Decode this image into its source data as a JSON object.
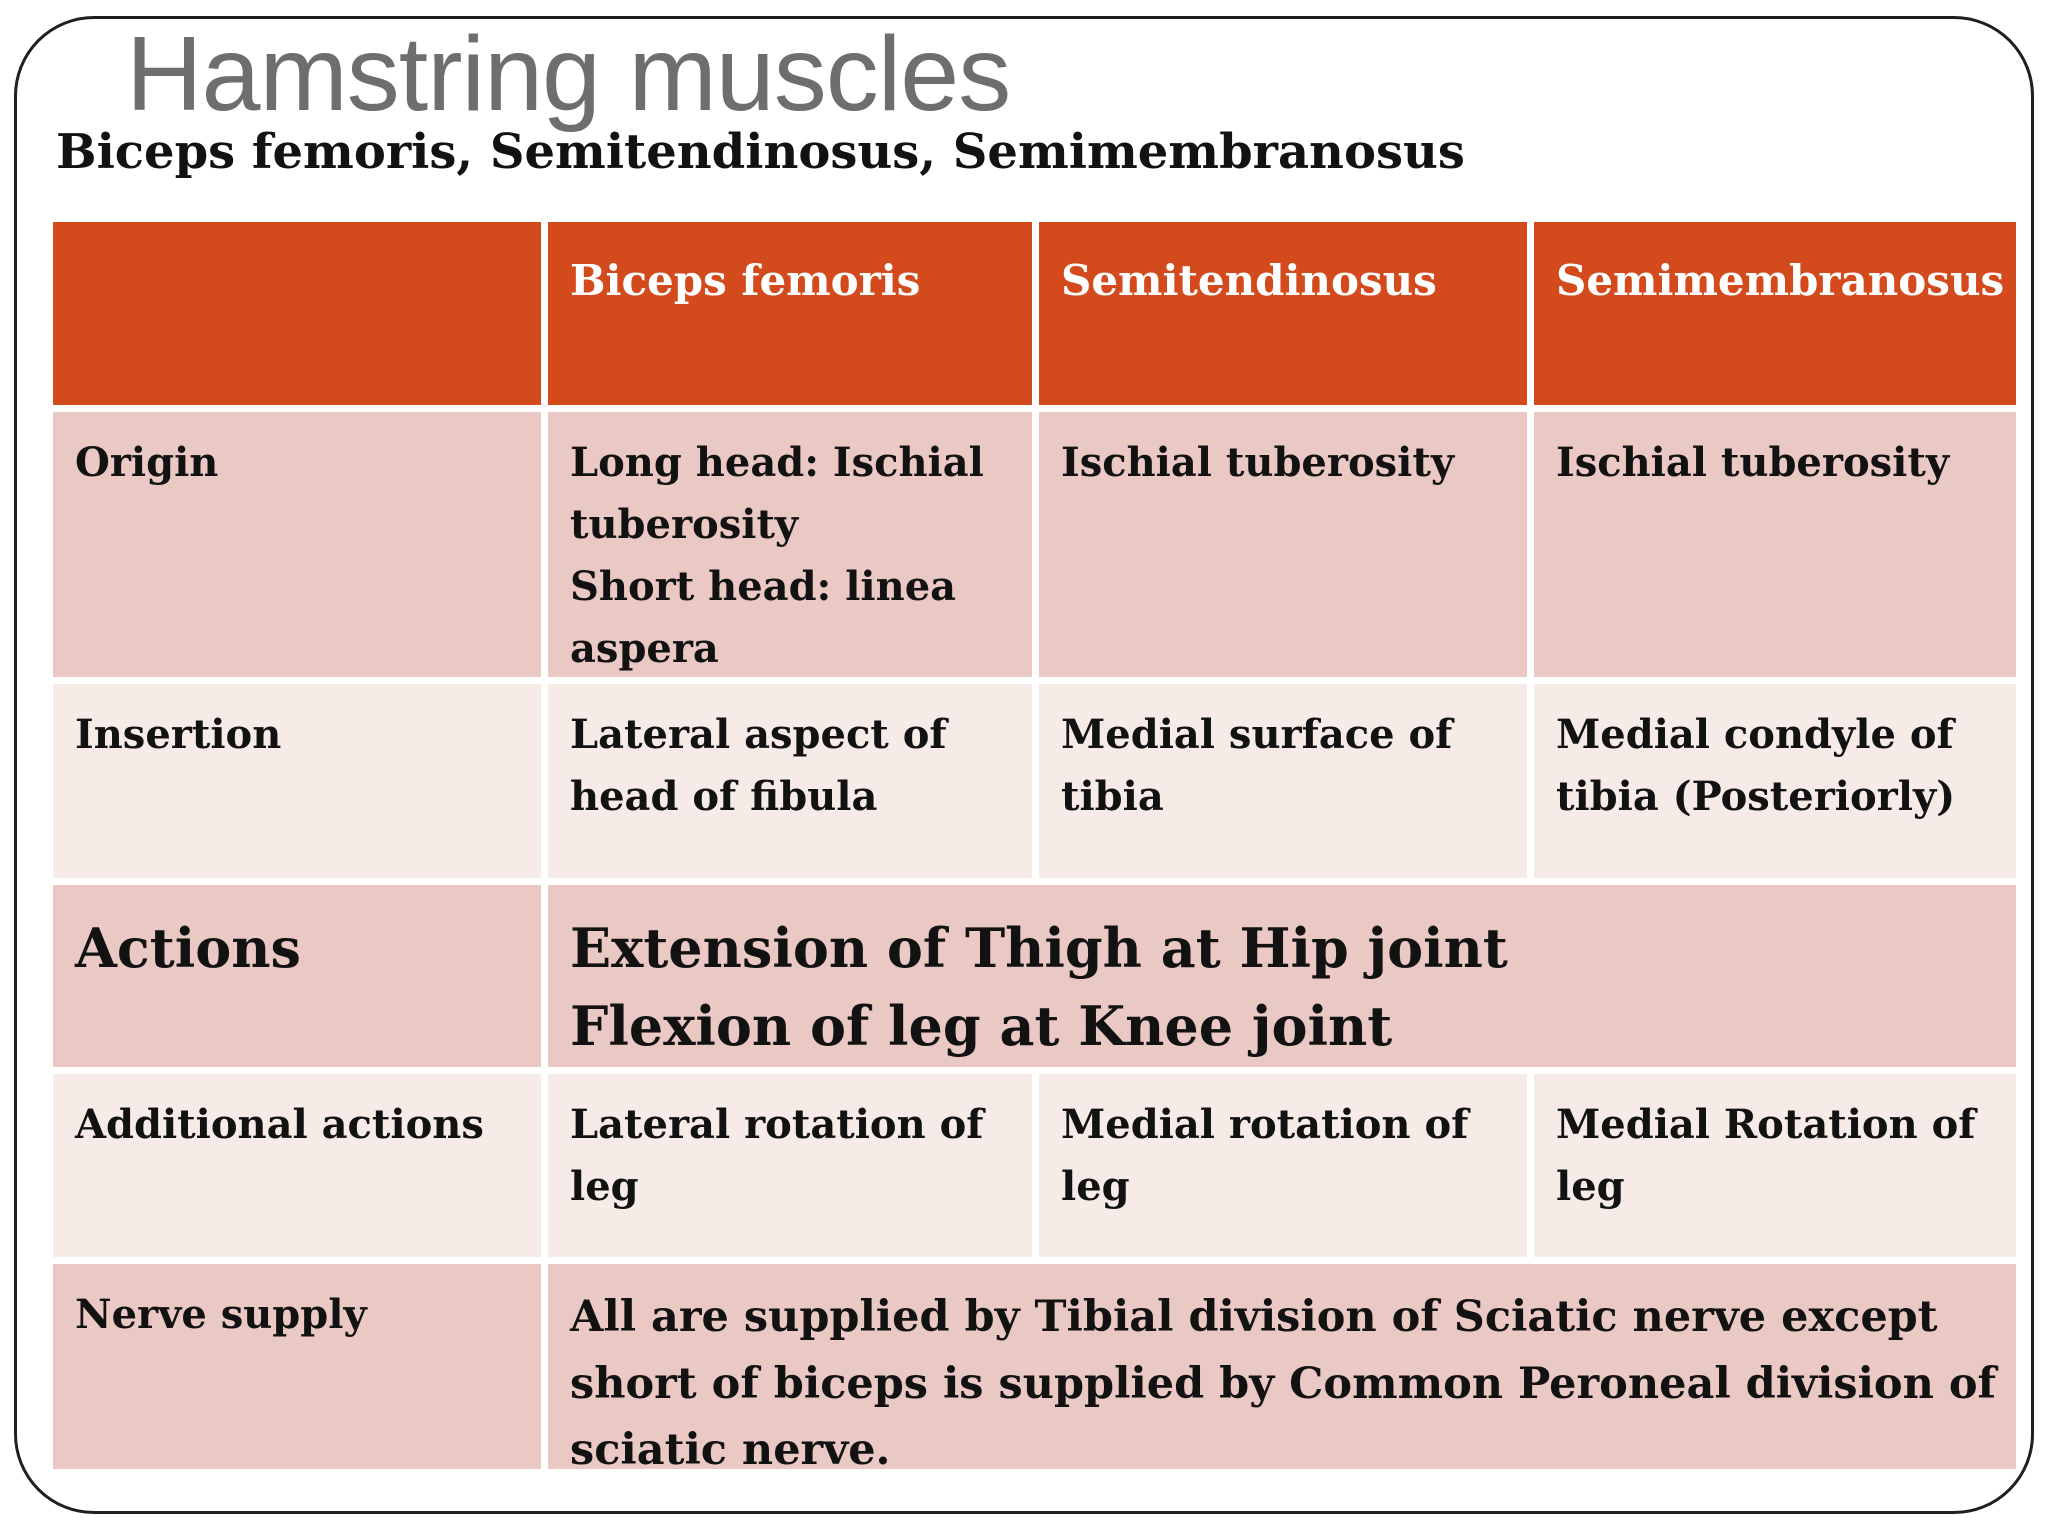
{
  "title": "Hamstring muscles",
  "subtitle": "Biceps femoris, Semitendinosus, Semimembranosus",
  "colors": {
    "header_bg": "#d34a1c",
    "header_text": "#ffffff",
    "row_dark": "#eac8c3",
    "row_light": "#f7ebe8",
    "title_text": "#6e6e6e",
    "body_text": "#121212",
    "frame_line": "#1f1f1f"
  },
  "table": {
    "columns": [
      "",
      "Biceps femoris",
      "Semitendinosus",
      "Semimembranosus"
    ],
    "rows": [
      {
        "label": "Origin",
        "cells": [
          "Long head: Ischial tuberosity\nShort head: linea aspera",
          "Ischial tuberosity",
          "Ischial tuberosity"
        ]
      },
      {
        "label": "Insertion",
        "cells": [
          "Lateral aspect of head of fibula",
          "Medial surface of tibia",
          "Medial condyle of tibia (Posteriorly)"
        ]
      },
      {
        "label": "Actions",
        "span": "Extension of Thigh at Hip joint\nFlexion of leg at Knee joint"
      },
      {
        "label": "Additional actions",
        "cells": [
          "Lateral rotation of leg",
          "Medial rotation of leg",
          "Medial Rotation of leg"
        ]
      },
      {
        "label": "Nerve supply",
        "span": "All are supplied by Tibial division of Sciatic nerve except short of biceps is supplied by Common Peroneal division of sciatic nerve."
      }
    ]
  }
}
